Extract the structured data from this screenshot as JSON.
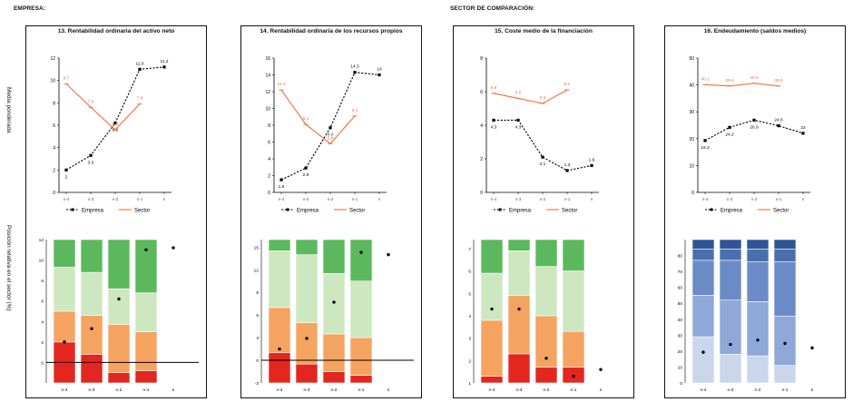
{
  "header": {
    "empresa": "EMPRESA:",
    "sector": "SECTOR DE COMPARACIÓN:"
  },
  "side_labels": {
    "top": "Media ponderada",
    "bottom": "Posición relativa en el sector (%)"
  },
  "chart_data": [
    {
      "type": "line",
      "title": "13. Rentabilidad ordinaria del activo neto",
      "categories": [
        "n-4",
        "n-3",
        "n-2",
        "n-1",
        "n"
      ],
      "ylim": [
        0,
        12
      ],
      "yticks": [
        0,
        2,
        4,
        6,
        8,
        10,
        12
      ],
      "legend": "bottom",
      "series": [
        {
          "name": "Empresa",
          "color": "#000000",
          "values": [
            2.0,
            3.3,
            6.2,
            11.0,
            11.2
          ],
          "labels": [
            "2",
            "3.3",
            "6.2",
            "11.0",
            "11.2"
          ]
        },
        {
          "name": "Sector",
          "color": "#f36f3d",
          "values": [
            9.7,
            7.6,
            5.6,
            7.9,
            null
          ],
          "labels": [
            "9.7",
            "7.6",
            "5.6",
            "7.9",
            ""
          ]
        }
      ],
      "position": {
        "ylim": [
          -2,
          12
        ],
        "yticks": [
          0,
          2,
          4,
          6,
          8,
          10,
          12
        ],
        "categories": [
          "n-4",
          "n-3",
          "n-2",
          "n-1",
          "n"
        ],
        "bands": [
          [
            -2,
            2,
            5,
            9.3,
            12
          ],
          [
            -2,
            0.8,
            4.6,
            8.8,
            12
          ],
          [
            -2,
            -1,
            3.7,
            7.2,
            12
          ],
          [
            -2,
            -0.8,
            3,
            6.8,
            12
          ]
        ],
        "markers": [
          2.0,
          3.3,
          6.2,
          11.0,
          11.2
        ],
        "hline": 0
      }
    },
    {
      "type": "line",
      "title": "14. Rentabilidad ordinaria de los recursos propios",
      "categories": [
        "n-4",
        "n-3",
        "n-2",
        "n-1",
        "n"
      ],
      "ylim": [
        0,
        16
      ],
      "yticks": [
        0,
        2,
        4,
        6,
        8,
        10,
        12,
        14,
        16
      ],
      "legend": "bottom",
      "series": [
        {
          "name": "Empresa",
          "color": "#000000",
          "values": [
            1.5,
            2.9,
            7.7,
            14.3,
            14.0
          ],
          "labels": [
            "1.5",
            "2.9",
            "7.7",
            "14.3",
            "14"
          ]
        },
        {
          "name": "Sector",
          "color": "#f36f3d",
          "values": [
            12.2,
            8.1,
            5.8,
            9.1,
            null
          ],
          "labels": [
            "12.2",
            "8.1",
            "5.8",
            "9.1",
            ""
          ]
        }
      ],
      "position": {
        "ylim": [
          -3,
          16
        ],
        "yticks": [
          -3,
          0,
          3,
          6,
          9,
          12,
          15
        ],
        "categories": [
          "n-4",
          "n-3",
          "n-2",
          "n-1",
          "n"
        ],
        "bands": [
          [
            -3,
            1,
            7,
            14.5,
            16
          ],
          [
            -3,
            -0.5,
            5,
            14,
            16
          ],
          [
            -3,
            -1.5,
            3.5,
            11.5,
            16
          ],
          [
            -3,
            -2,
            3,
            10.5,
            16
          ]
        ],
        "markers": [
          1.5,
          2.9,
          7.7,
          14.3,
          14.0
        ],
        "hline": 0
      }
    },
    {
      "type": "line",
      "title": "15. Coste medio de la financiación",
      "categories": [
        "n-4",
        "n-3",
        "n-2",
        "n-1",
        "n"
      ],
      "ylim": [
        0,
        8
      ],
      "yticks": [
        0,
        2,
        4,
        6,
        8
      ],
      "legend": "bottom",
      "series": [
        {
          "name": "Empresa",
          "color": "#000000",
          "values": [
            4.3,
            4.3,
            2.1,
            1.3,
            1.6
          ],
          "labels": [
            "4.3",
            "4.3",
            "2.1",
            "1.3",
            "1.6"
          ]
        },
        {
          "name": "Sector",
          "color": "#f36f3d",
          "values": [
            5.9,
            5.6,
            5.3,
            6.1,
            null
          ],
          "labels": [
            "5.9",
            "5.6",
            "5.3",
            "6.1",
            ""
          ]
        }
      ],
      "position": {
        "ylim": [
          1,
          7.4
        ],
        "yticks": [
          1,
          2,
          3,
          4,
          5,
          6,
          7
        ],
        "categories": [
          "n-4",
          "n-3",
          "n-2",
          "n-1",
          "n"
        ],
        "bands": [
          [
            1,
            1.3,
            3.8,
            5.9,
            7.4
          ],
          [
            1,
            2.3,
            4.9,
            6.9,
            7.4
          ],
          [
            1,
            1.7,
            4,
            6.2,
            7.4
          ],
          [
            1,
            1.7,
            3.3,
            6,
            7.4
          ]
        ],
        "markers": [
          4.3,
          4.3,
          2.1,
          1.3,
          1.6
        ],
        "hline": null
      }
    },
    {
      "type": "line",
      "title": "16. Endeudamiento (saldos medios)",
      "categories": [
        "n-4",
        "n-3",
        "n-2",
        "n-1",
        "n"
      ],
      "ylim": [
        0,
        50
      ],
      "yticks": [
        0,
        10,
        20,
        30,
        40,
        50
      ],
      "legend": "bottom",
      "series": [
        {
          "name": "Empresa",
          "color": "#000000",
          "values": [
            19.3,
            24.2,
            26.9,
            24.8,
            22.0
          ],
          "labels": [
            "19.3",
            "24.2",
            "26.9",
            "24.8",
            "22"
          ]
        },
        {
          "name": "Sector",
          "color": "#f36f3d",
          "values": [
            40.1,
            39.6,
            40.6,
            39.6,
            null
          ],
          "labels": [
            "40.1",
            "39.6",
            "40.6",
            "39.6",
            ""
          ]
        }
      ],
      "position": {
        "ylim": [
          0,
          90
        ],
        "yticks": [
          0,
          10,
          20,
          30,
          40,
          50,
          60,
          70,
          80
        ],
        "categories": [
          "n-4",
          "n-3",
          "n-2",
          "n-1",
          "n"
        ],
        "bands": [
          [
            0,
            29,
            55,
            77,
            84,
            90
          ],
          [
            0,
            18,
            52,
            77,
            84,
            90
          ],
          [
            0,
            17,
            51,
            76,
            84,
            90
          ],
          [
            0,
            11,
            42,
            76,
            84,
            90
          ]
        ],
        "markers": [
          19.3,
          24.2,
          26.9,
          24.8,
          22.0
        ],
        "hline": null
      }
    }
  ],
  "colors": {
    "sector_line": "#f36f3d",
    "band_red": "#e3261f",
    "band_orange": "#f4a460",
    "band_lightgreen": "#cde7c0",
    "band_green": "#5cb85c",
    "blue_palette": [
      "#c9d6ec",
      "#8fa8d7",
      "#6b8bc6",
      "#4a6fae",
      "#2f5597"
    ]
  }
}
